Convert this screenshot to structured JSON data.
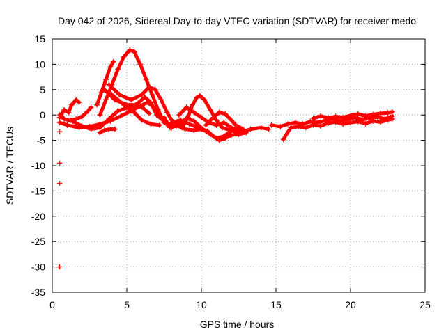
{
  "chart_data": {
    "type": "scatter",
    "title": "Day 042 of 2026, Sidereal Day-to-day VTEC variation (SDTVAR) for receiver medo",
    "xlabel": "GPS time / hours",
    "ylabel": "SDTVAR / TECUs",
    "xlim": [
      0,
      25
    ],
    "ylim": [
      -35,
      15
    ],
    "x_ticks": [
      0,
      5,
      10,
      15,
      20,
      25
    ],
    "y_ticks": [
      15,
      10,
      5,
      0,
      -5,
      -10,
      -15,
      -20,
      -25,
      -30,
      -35
    ],
    "grid": true,
    "marker": "+",
    "series_color": "#ff0000",
    "isolated_points": [
      {
        "x": 0.5,
        "y": -3.3
      },
      {
        "x": 0.5,
        "y": -9.5
      },
      {
        "x": 0.5,
        "y": -13.5
      },
      {
        "x": 0.5,
        "y": -30.0
      },
      {
        "x": 0.45,
        "y": -30.0
      }
    ],
    "tracks": [
      {
        "name": "peak-13",
        "points": [
          [
            3.2,
            0
          ],
          [
            3.6,
            3
          ],
          [
            4.0,
            6
          ],
          [
            4.4,
            9
          ],
          [
            4.8,
            11.5
          ],
          [
            5.2,
            12.8
          ],
          [
            5.5,
            12.5
          ],
          [
            5.9,
            10
          ],
          [
            6.3,
            7
          ],
          [
            6.7,
            4
          ],
          [
            7.1,
            1
          ],
          [
            7.5,
            -1.5
          ],
          [
            8.0,
            -2.5
          ]
        ]
      },
      {
        "name": "peak-10",
        "points": [
          [
            3.0,
            2
          ],
          [
            3.3,
            4.5
          ],
          [
            3.6,
            7
          ],
          [
            3.9,
            9.5
          ],
          [
            4.1,
            10.5
          ]
        ]
      },
      {
        "name": "mid-arc-a",
        "points": [
          [
            3.8,
            6
          ],
          [
            4.5,
            4
          ],
          [
            5.3,
            3
          ],
          [
            6.0,
            4
          ],
          [
            6.5,
            5.5
          ],
          [
            6.9,
            5
          ],
          [
            7.3,
            3
          ],
          [
            7.7,
            0.5
          ],
          [
            8.0,
            -1
          ],
          [
            8.5,
            -2
          ]
        ]
      },
      {
        "name": "mid-arc-b",
        "points": [
          [
            3.5,
            5
          ],
          [
            4.2,
            3
          ],
          [
            5.0,
            2
          ],
          [
            5.6,
            2
          ],
          [
            6.2,
            3.5
          ],
          [
            6.6,
            2.5
          ],
          [
            7.0,
            0
          ],
          [
            7.6,
            -1.5
          ],
          [
            8.3,
            -2.3
          ]
        ]
      },
      {
        "name": "mid-arc-c",
        "points": [
          [
            4.0,
            4
          ],
          [
            4.8,
            2
          ],
          [
            5.5,
            0.5
          ],
          [
            6.0,
            -1
          ],
          [
            6.6,
            -1.8
          ],
          [
            7.2,
            -2
          ]
        ]
      },
      {
        "name": "low-arc-a",
        "points": [
          [
            0.5,
            -1.5
          ],
          [
            1.0,
            -2
          ],
          [
            1.8,
            -2.5
          ],
          [
            2.5,
            -2.3
          ],
          [
            3.2,
            -1.8
          ],
          [
            3.9,
            -1.2
          ],
          [
            4.6,
            -0.2
          ],
          [
            5.3,
            0.8
          ],
          [
            5.9,
            1.8
          ],
          [
            6.4,
            2.5
          ],
          [
            6.8,
            1.5
          ],
          [
            7.3,
            -0.5
          ],
          [
            7.8,
            -2
          ]
        ]
      },
      {
        "name": "low-arc-b",
        "points": [
          [
            0.5,
            0
          ],
          [
            0.8,
            -0.8
          ],
          [
            1.4,
            -1.3
          ],
          [
            2.0,
            -2.2
          ],
          [
            2.6,
            -2.8
          ],
          [
            3.2,
            -2.5
          ],
          [
            3.8,
            -0.8
          ],
          [
            4.4,
            0.8
          ],
          [
            5.0,
            1.4
          ],
          [
            5.5,
            1.8
          ],
          [
            6.0,
            1.6
          ],
          [
            6.5,
            0.3
          ]
        ]
      },
      {
        "name": "start-wave-a",
        "points": [
          [
            0.5,
            -0.5
          ],
          [
            0.8,
            1
          ],
          [
            1.1,
            0.5
          ],
          [
            1.3,
            2
          ],
          [
            1.6,
            3
          ],
          [
            1.8,
            2.5
          ]
        ]
      },
      {
        "name": "start-wave-b",
        "points": [
          [
            1.2,
            -1
          ],
          [
            1.6,
            -0.8
          ],
          [
            2.0,
            -0.3
          ],
          [
            2.4,
            0.8
          ],
          [
            2.6,
            1.5
          ]
        ]
      },
      {
        "name": "small-bump",
        "points": [
          [
            3.2,
            -3.5
          ],
          [
            3.5,
            -3
          ],
          [
            3.8,
            -2.8
          ],
          [
            4.2,
            -2.8
          ]
        ]
      },
      {
        "name": "arc-9-a",
        "points": [
          [
            8.7,
            -2.5
          ],
          [
            9.1,
            -0.5
          ],
          [
            9.4,
            2
          ],
          [
            9.7,
            3.5
          ],
          [
            9.9,
            3.8
          ],
          [
            10.2,
            3
          ],
          [
            10.6,
            1
          ],
          [
            11.0,
            -1
          ],
          [
            11.4,
            -2.5
          ],
          [
            11.9,
            -3
          ],
          [
            12.5,
            -3.5
          ],
          [
            13.3,
            -2.8
          ],
          [
            14.0,
            -2.5
          ],
          [
            14.5,
            -2.8
          ]
        ]
      },
      {
        "name": "arc-9-b",
        "points": [
          [
            8.5,
            0
          ],
          [
            9.0,
            1.5
          ],
          [
            9.5,
            0.5
          ],
          [
            10.0,
            -0.5
          ],
          [
            10.5,
            -1.5
          ],
          [
            11.0,
            -2
          ],
          [
            11.5,
            -1.5
          ],
          [
            12.0,
            -2.5
          ],
          [
            12.6,
            -3
          ]
        ]
      },
      {
        "name": "arc-9-c",
        "points": [
          [
            8.0,
            -1.5
          ],
          [
            8.6,
            -1
          ],
          [
            9.2,
            -1.8
          ],
          [
            9.8,
            -2.5
          ],
          [
            10.4,
            -3.2
          ],
          [
            10.8,
            -4.2
          ],
          [
            11.2,
            -5
          ],
          [
            11.6,
            -4.6
          ],
          [
            12.0,
            -4
          ],
          [
            12.5,
            -3.8
          ],
          [
            13.0,
            -3.5
          ]
        ]
      },
      {
        "name": "arc-9-d",
        "points": [
          [
            8.3,
            -2
          ],
          [
            8.9,
            -2.8
          ],
          [
            9.5,
            -3
          ],
          [
            10.0,
            -2.8
          ],
          [
            10.5,
            -3.5
          ],
          [
            11.0,
            -4.6
          ],
          [
            11.5,
            -4.2
          ],
          [
            12.0,
            -3.2
          ],
          [
            12.5,
            -2.8
          ]
        ]
      },
      {
        "name": "arc-11-e",
        "points": [
          [
            10.3,
            -2
          ],
          [
            10.8,
            -0.5
          ],
          [
            11.2,
            0.5
          ],
          [
            11.6,
            0.2
          ],
          [
            12.0,
            -1
          ],
          [
            12.3,
            -2
          ],
          [
            12.8,
            -2.8
          ]
        ]
      },
      {
        "name": "arc-7-f",
        "points": [
          [
            7.5,
            -0.5
          ],
          [
            7.9,
            -2.5
          ],
          [
            8.5,
            -2
          ],
          [
            9.0,
            -0.6
          ],
          [
            9.5,
            -1.2
          ],
          [
            10.1,
            -2.8
          ],
          [
            10.6,
            -3.8
          ]
        ]
      },
      {
        "name": "late-band-a",
        "points": [
          [
            14.7,
            -2
          ],
          [
            15.3,
            -2.3
          ],
          [
            15.8,
            -1.8
          ],
          [
            16.3,
            -1.5
          ],
          [
            16.8,
            -1.8
          ],
          [
            17.3,
            -1.3
          ],
          [
            17.8,
            -1.5
          ],
          [
            18.3,
            -1.1
          ],
          [
            18.8,
            -0.7
          ],
          [
            19.3,
            -1.2
          ],
          [
            19.8,
            -0.9
          ],
          [
            20.3,
            -0.5
          ],
          [
            20.8,
            -0.9
          ],
          [
            21.3,
            -0.6
          ],
          [
            21.8,
            -0.4
          ],
          [
            22.3,
            -0.8
          ],
          [
            22.8,
            -0.2
          ]
        ]
      },
      {
        "name": "late-band-b",
        "points": [
          [
            15.5,
            -4.8
          ],
          [
            15.7,
            -3.8
          ],
          [
            16.0,
            -2.5
          ],
          [
            16.5,
            -2.3
          ],
          [
            17.0,
            -2.5
          ],
          [
            17.5,
            -2
          ],
          [
            18.0,
            -2.2
          ],
          [
            18.5,
            -1.6
          ],
          [
            19.0,
            -1.4
          ],
          [
            19.5,
            -1.8
          ],
          [
            20.0,
            -1.5
          ],
          [
            20.5,
            -1.3
          ],
          [
            21.0,
            -1.7
          ],
          [
            21.5,
            -1.2
          ],
          [
            22.0,
            -1.4
          ],
          [
            22.5,
            -1
          ],
          [
            22.8,
            -0.8
          ]
        ]
      },
      {
        "name": "late-band-c",
        "points": [
          [
            17.5,
            -0.7
          ],
          [
            18.0,
            -0.2
          ],
          [
            18.5,
            -0.6
          ],
          [
            19.0,
            -0.3
          ],
          [
            19.5,
            -0.5
          ],
          [
            20.0,
            -0.1
          ],
          [
            20.5,
            0.2
          ],
          [
            21.0,
            -0.2
          ],
          [
            21.5,
            0.1
          ],
          [
            22.0,
            0.3
          ],
          [
            22.5,
            0.4
          ],
          [
            22.8,
            0.6
          ]
        ]
      }
    ]
  }
}
